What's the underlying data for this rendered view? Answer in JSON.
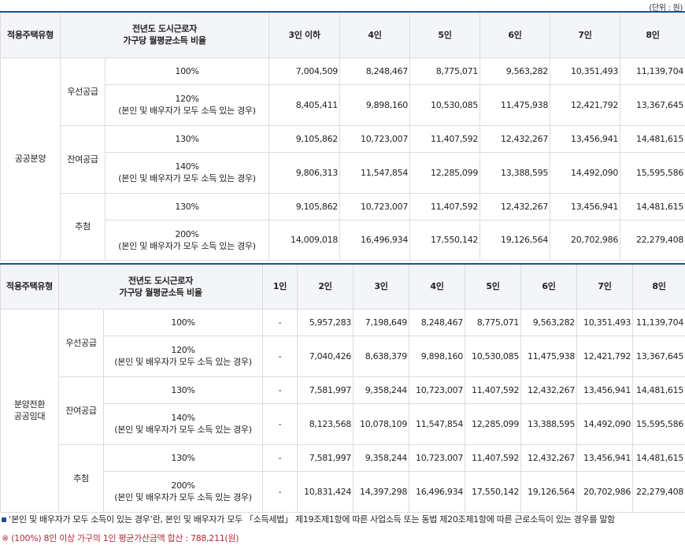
{
  "unit_label": "(단위 : 원)",
  "table1": {
    "header": {
      "type": "적용주택유형",
      "income_line1": "전년도 도시근로자",
      "income_line2": "가구당 월평균소득 비율",
      "cols": [
        "3인 이하",
        "4인",
        "5인",
        "6인",
        "7인",
        "8인"
      ]
    },
    "group": "공공분양",
    "subs": [
      "우선공급",
      "잔여공급",
      "추첨"
    ],
    "rows": [
      {
        "pct": "100%",
        "note": "",
        "vals": [
          "7,004,509",
          "8,248,467",
          "8,775,071",
          "9,563,282",
          "10,351,493",
          "11,139,704"
        ]
      },
      {
        "pct": "120%",
        "note": "(본인 및 배우자가 모두 소득 있는 경우)",
        "vals": [
          "8,405,411",
          "9,898,160",
          "10,530,085",
          "11,475,938",
          "12,421,792",
          "13,367,645"
        ]
      },
      {
        "pct": "130%",
        "note": "",
        "vals": [
          "9,105,862",
          "10,723,007",
          "11,407,592",
          "12,432,267",
          "13,456,941",
          "14,481,615"
        ]
      },
      {
        "pct": "140%",
        "note": "(본인 및 배우자가 모두 소득 있는 경우)",
        "vals": [
          "9,806,313",
          "11,547,854",
          "12,285,099",
          "13,388,595",
          "14,492,090",
          "15,595,586"
        ]
      },
      {
        "pct": "130%",
        "note": "",
        "vals": [
          "9,105,862",
          "10,723,007",
          "11,407,592",
          "12,432,267",
          "13,456,941",
          "14,481,615"
        ]
      },
      {
        "pct": "200%",
        "note": "(본인 및 배우자가 모두 소득 있는 경우)",
        "vals": [
          "14,009,018",
          "16,496,934",
          "17,550,142",
          "19,126,564",
          "20,702,986",
          "22,279,408"
        ]
      }
    ]
  },
  "table2": {
    "header": {
      "type": "적용주택유형",
      "income_line1": "전년도 도시근로자",
      "income_line2": "가구당 월평균소득 비율",
      "cols": [
        "1인",
        "2인",
        "3인",
        "4인",
        "5인",
        "6인",
        "7인",
        "8인"
      ]
    },
    "group_line1": "분양전환",
    "group_line2": "공공임대",
    "subs": [
      "우선공급",
      "잔여공급",
      "추첨"
    ],
    "rows": [
      {
        "pct": "100%",
        "note": "",
        "vals": [
          "-",
          "5,957,283",
          "7,198,649",
          "8,248,467",
          "8,775,071",
          "9,563,282",
          "10,351,493",
          "11,139,704"
        ]
      },
      {
        "pct": "120%",
        "note": "(본인 및 배우자가 모두 소득 있는 경우)",
        "vals": [
          "-",
          "7,040,426",
          "8,638,379",
          "9,898,160",
          "10,530,085",
          "11,475,938",
          "12,421,792",
          "13,367,645"
        ]
      },
      {
        "pct": "130%",
        "note": "",
        "vals": [
          "-",
          "7,581,997",
          "9,358,244",
          "10,723,007",
          "11,407,592",
          "12,432,267",
          "13,456,941",
          "14,481,615"
        ]
      },
      {
        "pct": "140%",
        "note": "(본인 및 배우자가 모두 소득 있는 경우)",
        "vals": [
          "-",
          "8,123,568",
          "10,078,109",
          "11,547,854",
          "12,285,099",
          "13,388,595",
          "14,492,090",
          "15,595,586"
        ]
      },
      {
        "pct": "130%",
        "note": "",
        "vals": [
          "-",
          "7,581,997",
          "9,358,244",
          "10,723,007",
          "11,407,592",
          "12,432,267",
          "13,456,941",
          "14,481,615"
        ]
      },
      {
        "pct": "200%",
        "note": "(본인 및 배우자가 모두 소득 있는 경우)",
        "vals": [
          "-",
          "10,831,424",
          "14,397,298",
          "16,496,934",
          "17,550,142",
          "19,126,564",
          "20,702,986",
          "22,279,408"
        ]
      }
    ]
  },
  "notes": {
    "note1": "‘본인 및 배우자가 모두 소득이 있는 경우’란, 본인 및 배우자가 모두 「소득세법」 제19조제1항에 따른 사업소득 또는 동법 제20조제1항에 따른 근로소득이 있는 경우를 말함",
    "note2": "※ (100%) 8인 이상 가구의 1인 평균가산금액 합산 : 788,211(원)"
  }
}
